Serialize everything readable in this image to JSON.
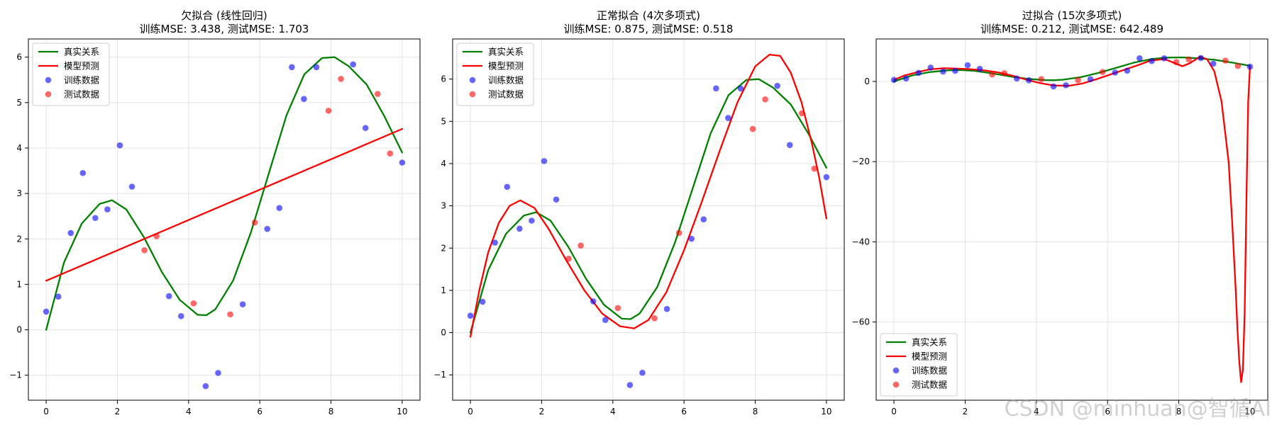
{
  "chart_data": [
    {
      "type": "line",
      "title": "欠拟合 (线性回归)",
      "subtitle": "训练MSE: 3.438, 测试MSE: 1.703",
      "xlim": [
        -0.5,
        10.5
      ],
      "ylim": [
        -1.55,
        6.4
      ],
      "xticks": [
        0,
        2,
        4,
        6,
        8,
        10
      ],
      "yticks": [
        -1,
        0,
        1,
        2,
        3,
        4,
        5,
        6
      ],
      "grid": true,
      "legend_position": "upper left",
      "legend": [
        "真实关系",
        "模型预测",
        "训练数据",
        "测试数据"
      ],
      "series": [
        {
          "name": "真实关系",
          "kind": "line",
          "color": "#008000",
          "x": [
            0.0,
            0.5,
            1.0,
            1.5,
            1.85,
            2.25,
            2.75,
            3.25,
            3.75,
            4.25,
            4.5,
            4.75,
            5.25,
            5.75,
            6.25,
            6.75,
            7.25,
            7.75,
            8.1,
            8.5,
            9.0,
            9.5,
            10.0
          ],
          "y": [
            0.0,
            1.48,
            2.34,
            2.77,
            2.85,
            2.65,
            2.03,
            1.27,
            0.66,
            0.33,
            0.32,
            0.45,
            1.08,
            2.14,
            3.43,
            4.72,
            5.62,
            5.98,
            6.0,
            5.8,
            5.4,
            4.7,
            3.9
          ]
        },
        {
          "name": "模型预测",
          "kind": "line",
          "color": "#ff0000",
          "x": [
            0,
            10
          ],
          "y": [
            1.08,
            4.42
          ]
        },
        {
          "name": "训练数据",
          "kind": "scatter",
          "color": "#0000ff",
          "x": [
            0.0,
            0.34,
            0.69,
            1.03,
            1.38,
            1.72,
            2.07,
            2.41,
            3.45,
            3.79,
            4.48,
            4.83,
            5.52,
            6.21,
            6.55,
            6.9,
            7.24,
            7.59,
            8.62,
            8.97,
            10.0
          ],
          "y": [
            0.4,
            0.73,
            2.13,
            3.45,
            2.46,
            2.65,
            4.06,
            3.15,
            0.74,
            0.3,
            -1.24,
            -0.95,
            0.56,
            2.22,
            2.68,
            5.78,
            5.08,
            5.78,
            5.84,
            4.44,
            3.68
          ]
        },
        {
          "name": "测试数据",
          "kind": "scatter",
          "color": "#ff0000",
          "x": [
            2.76,
            3.1,
            4.14,
            5.17,
            5.86,
            7.93,
            8.28,
            9.31,
            9.66
          ],
          "y": [
            1.75,
            2.06,
            0.58,
            0.34,
            2.36,
            4.82,
            5.52,
            5.19,
            3.88
          ]
        }
      ]
    },
    {
      "type": "line",
      "title": "正常拟合 (4次多项式)",
      "subtitle": "训练MSE: 0.875, 测试MSE: 0.518",
      "xlim": [
        -0.5,
        10.5
      ],
      "ylim": [
        -1.6,
        6.95
      ],
      "xticks": [
        0,
        2,
        4,
        6,
        8,
        10
      ],
      "yticks": [
        -1,
        0,
        1,
        2,
        3,
        4,
        5,
        6
      ],
      "grid": true,
      "legend_position": "upper left",
      "legend": [
        "真实关系",
        "模型预测",
        "训练数据",
        "测试数据"
      ],
      "series": [
        {
          "name": "真实关系",
          "kind": "line",
          "color": "#008000",
          "x": [
            0.0,
            0.5,
            1.0,
            1.5,
            1.85,
            2.25,
            2.75,
            3.25,
            3.75,
            4.25,
            4.5,
            4.75,
            5.25,
            5.75,
            6.25,
            6.75,
            7.25,
            7.75,
            8.1,
            8.5,
            9.0,
            9.5,
            10.0
          ],
          "y": [
            0.0,
            1.48,
            2.34,
            2.77,
            2.85,
            2.65,
            2.03,
            1.27,
            0.66,
            0.33,
            0.32,
            0.45,
            1.08,
            2.14,
            3.43,
            4.72,
            5.62,
            5.98,
            6.0,
            5.8,
            5.4,
            4.7,
            3.9
          ]
        },
        {
          "name": "模型预测",
          "kind": "line",
          "color": "#ff0000",
          "x": [
            0.0,
            0.25,
            0.5,
            0.8,
            1.1,
            1.4,
            1.8,
            2.2,
            2.7,
            3.2,
            3.7,
            4.2,
            4.6,
            5.0,
            5.5,
            6.0,
            6.5,
            7.0,
            7.5,
            8.0,
            8.4,
            8.7,
            9.0,
            9.3,
            9.6,
            9.8,
            10.0
          ],
          "y": [
            -0.1,
            1.0,
            1.9,
            2.6,
            3.0,
            3.13,
            2.95,
            2.45,
            1.7,
            1.0,
            0.45,
            0.15,
            0.1,
            0.3,
            0.95,
            1.95,
            3.1,
            4.3,
            5.45,
            6.3,
            6.58,
            6.55,
            6.15,
            5.45,
            4.45,
            3.65,
            2.7
          ]
        },
        {
          "name": "训练数据",
          "kind": "scatter",
          "color": "#0000ff",
          "x": [
            0.0,
            0.34,
            0.69,
            1.03,
            1.38,
            1.72,
            2.07,
            2.41,
            3.45,
            3.79,
            4.48,
            4.83,
            5.52,
            6.21,
            6.55,
            6.9,
            7.24,
            7.59,
            8.62,
            8.97,
            10.0
          ],
          "y": [
            0.4,
            0.73,
            2.13,
            3.45,
            2.46,
            2.65,
            4.06,
            3.15,
            0.74,
            0.3,
            -1.24,
            -0.95,
            0.56,
            2.22,
            2.68,
            5.78,
            5.08,
            5.78,
            5.84,
            4.44,
            3.68
          ]
        },
        {
          "name": "测试数据",
          "kind": "scatter",
          "color": "#ff0000",
          "x": [
            2.76,
            3.1,
            4.14,
            5.17,
            5.86,
            7.93,
            8.28,
            9.31,
            9.66
          ],
          "y": [
            1.75,
            2.06,
            0.58,
            0.34,
            2.36,
            4.82,
            5.52,
            5.19,
            3.88
          ]
        }
      ]
    },
    {
      "type": "line",
      "title": "过拟合 (15次多项式)",
      "subtitle": "训练MSE: 0.212, 测试MSE: 642.489",
      "xlim": [
        -0.5,
        10.5
      ],
      "ylim": [
        -79.5,
        10.6
      ],
      "xticks": [
        0,
        2,
        4,
        6,
        8,
        10
      ],
      "yticks": [
        0,
        -20,
        -40,
        -60
      ],
      "grid": true,
      "legend_position": "lower left",
      "legend": [
        "真实关系",
        "模型预测",
        "训练数据",
        "测试数据"
      ],
      "series": [
        {
          "name": "真实关系",
          "kind": "line",
          "color": "#008000",
          "x": [
            0.0,
            0.5,
            1.0,
            1.5,
            1.85,
            2.25,
            2.75,
            3.25,
            3.75,
            4.25,
            4.5,
            4.75,
            5.25,
            5.75,
            6.25,
            6.75,
            7.25,
            7.75,
            8.1,
            8.5,
            9.0,
            9.5,
            10.0
          ],
          "y": [
            0.0,
            1.48,
            2.34,
            2.77,
            2.85,
            2.65,
            2.03,
            1.27,
            0.66,
            0.33,
            0.32,
            0.45,
            1.08,
            2.14,
            3.43,
            4.72,
            5.62,
            5.98,
            6.0,
            5.8,
            5.4,
            4.7,
            3.9
          ]
        },
        {
          "name": "模型预测",
          "kind": "line",
          "color": "#ff0000",
          "x": [
            0.0,
            0.3,
            0.7,
            1.0,
            1.4,
            1.8,
            2.1,
            2.5,
            2.9,
            3.3,
            3.7,
            4.1,
            4.5,
            4.9,
            5.3,
            5.7,
            6.1,
            6.5,
            6.9,
            7.2,
            7.6,
            7.9,
            8.1,
            8.3,
            8.6,
            8.8,
            9.0,
            9.2,
            9.4,
            9.5,
            9.6,
            9.65,
            9.7,
            9.75,
            9.8,
            9.85,
            9.9,
            9.95,
            10.0
          ],
          "y": [
            0.4,
            1.5,
            2.4,
            3.0,
            3.3,
            3.2,
            3.1,
            2.8,
            2.3,
            1.5,
            0.5,
            -0.4,
            -1.0,
            -1.1,
            -0.5,
            0.6,
            1.8,
            3.0,
            4.2,
            5.2,
            5.6,
            4.5,
            3.8,
            4.5,
            6.2,
            5.5,
            2.5,
            -5.0,
            -20.0,
            -35.0,
            -52.0,
            -62.0,
            -70.0,
            -75.0,
            -72.0,
            -58.0,
            -30.0,
            -5.0,
            3.68
          ]
        },
        {
          "name": "训练数据",
          "kind": "scatter",
          "color": "#0000ff",
          "x": [
            0.0,
            0.34,
            0.69,
            1.03,
            1.38,
            1.72,
            2.07,
            2.41,
            3.45,
            3.79,
            4.48,
            4.83,
            5.52,
            6.21,
            6.55,
            6.9,
            7.24,
            7.59,
            8.62,
            8.97,
            10.0
          ],
          "y": [
            0.4,
            0.73,
            2.13,
            3.45,
            2.46,
            2.65,
            4.06,
            3.15,
            0.74,
            0.3,
            -1.24,
            -0.95,
            0.56,
            2.22,
            2.68,
            5.78,
            5.08,
            5.78,
            5.84,
            4.44,
            3.68
          ]
        },
        {
          "name": "测试数据",
          "kind": "scatter",
          "color": "#ff0000",
          "x": [
            2.76,
            3.1,
            4.14,
            5.17,
            5.86,
            7.93,
            8.28,
            9.31,
            9.66
          ],
          "y": [
            1.75,
            2.06,
            0.58,
            0.34,
            2.36,
            4.82,
            5.52,
            5.19,
            3.88
          ]
        }
      ]
    }
  ],
  "watermark": "CSDN @minhuan@智循AI"
}
